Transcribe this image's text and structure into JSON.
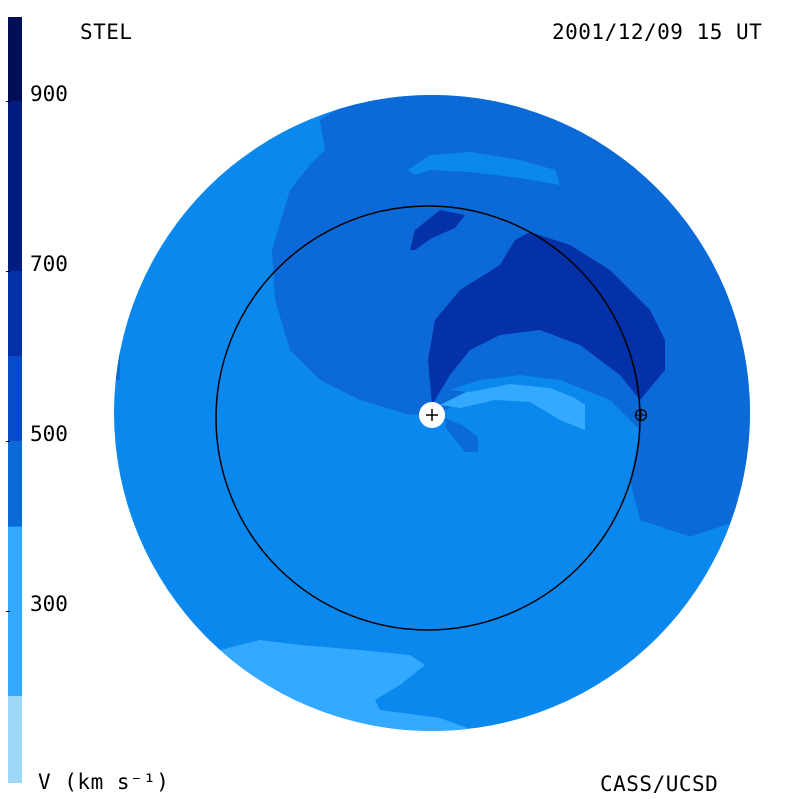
{
  "header": {
    "observatory": "STEL",
    "datetime": "2001/12/09 15 UT"
  },
  "footer": {
    "units_label": "V (km s⁻¹)",
    "credit": "CASS/UCSD"
  },
  "colorbar": {
    "tick_labels": [
      "900",
      "700",
      "500",
      "300"
    ],
    "tick_values": [
      900,
      700,
      500,
      300
    ],
    "range": [
      200,
      1000
    ],
    "band_step": 100,
    "colors": [
      "#9ed6f7",
      "#33aaff",
      "#0a88ee",
      "#0b6ad8",
      "#064cc8",
      "#0430a8",
      "#031c80",
      "#020f55"
    ]
  },
  "map": {
    "sun_marker": "plus-icon",
    "earth_marker": "earth-symbol-icon"
  }
}
